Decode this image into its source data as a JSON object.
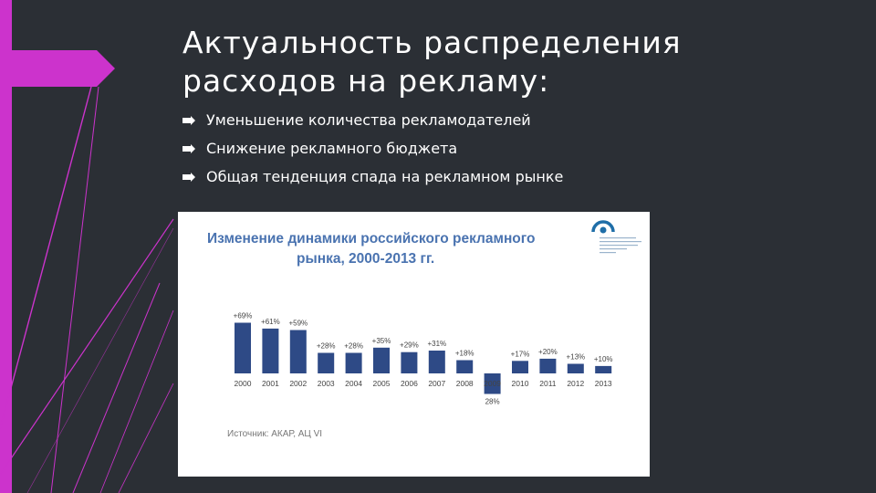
{
  "slide": {
    "title_line1": "Актуальность распределения",
    "title_line2": "расходов на рекламу:",
    "bullets": [
      "Уменьшение количества рекламодателей",
      "Снижение рекламного бюджета",
      "Общая тенденция спада на рекламном рынке"
    ],
    "accent_color": "#cc33cc"
  },
  "chart_data": {
    "type": "bar",
    "title_line1": "Изменение динамики российского рекламного",
    "title_line2": "рынка, 2000-2013 гг.",
    "categories": [
      "2000",
      "2001",
      "2002",
      "2003",
      "2004",
      "2005",
      "2006",
      "2007",
      "2008",
      "2009",
      "2010",
      "2011",
      "2012",
      "2013"
    ],
    "values": [
      69,
      61,
      59,
      28,
      28,
      35,
      29,
      31,
      18,
      -28,
      17,
      20,
      13,
      10
    ],
    "labels": [
      "+69%",
      "+61%",
      "+59%",
      "+28%",
      "+28%",
      "+35%",
      "+29%",
      "+31%",
      "+18%",
      "28%",
      "+17%",
      "+20%",
      "+13%",
      "+10%"
    ],
    "bar_color": "#2e4a86",
    "title_color": "#4a73b0",
    "source": "Источник: АКАР, АЦ VI"
  }
}
